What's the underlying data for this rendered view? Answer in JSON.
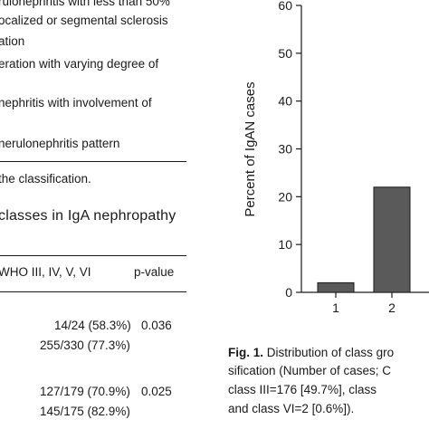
{
  "left_text": {
    "classification_lines": [
      "rulonephritis with less than 50%",
      "ocalized or segmental sclerosis",
      "ation",
      "eration with varying degree of",
      "nephritis with involvement of",
      "nerulonephritis pattern"
    ],
    "footnote": "the classification.",
    "table_caption": "classes in IgA nephropathy",
    "table_header": {
      "col1": "WHO III, IV, V, VI",
      "col2": "p-value"
    },
    "table_rows": [
      {
        "val": "14/24 (58.3%)",
        "p": "0.036"
      },
      {
        "val": "255/330 (77.3%)",
        "p": ""
      },
      {
        "val": "127/179 (70.9%)",
        "p": "0.025"
      },
      {
        "val": "145/175 (82.9%)",
        "p": ""
      }
    ]
  },
  "figure_caption": {
    "lines": [
      "Distribution of class gro",
      "sification (Number of cases; C",
      "class III=176 [49.7%], class",
      "and class VI=2 [0.6%])."
    ],
    "label": "Fig. 1."
  },
  "colors": {
    "bar_fill": "#5a5a5a",
    "axis": "#1a1a1a"
  },
  "chart_data": {
    "type": "bar",
    "categories": [
      "1",
      "2"
    ],
    "values": [
      2,
      22
    ],
    "ylabel": "Percent of IgAN cases",
    "ylim": [
      0,
      60
    ],
    "yticks": [
      0,
      10,
      20,
      30,
      40,
      50,
      60
    ],
    "grid": false
  }
}
